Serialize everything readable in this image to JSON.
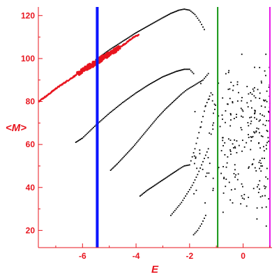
{
  "chart_data": {
    "type": "scatter",
    "xlabel": "E",
    "ylabel": "<M>",
    "xlim": [
      -7.65,
      1.08
    ],
    "ylim": [
      12,
      124
    ],
    "x_ticks": [
      "-6",
      "-4",
      "-2",
      "0"
    ],
    "y_ticks": [
      "20",
      "40",
      "60",
      "80",
      "100",
      "120"
    ],
    "colors": {
      "axes": "#e8141e",
      "red_series": "#e8141e",
      "black_series": "#000000",
      "blue_line": "#0a14ff",
      "green_line": "#149614",
      "magenta_line": "#e614e6"
    },
    "vertical_lines": [
      {
        "x": -5.45,
        "color": "#0a14ff"
      },
      {
        "x": -0.95,
        "color": "#149614"
      },
      {
        "x": 1.0,
        "color": "#e614e6"
      }
    ],
    "series": [
      {
        "color": "#e8141e",
        "description_visible": "",
        "branches": [
          {
            "x": [
              -7.65,
              -7.3,
              -7.0,
              -6.7,
              -6.4,
              -6.1,
              -5.8,
              -5.5,
              -5.3,
              -5.0,
              -4.7,
              -4.4,
              -4.2,
              -4.0,
              -3.9
            ],
            "y": [
              80,
              83,
              86,
              88.5,
              91,
              93.5,
              96,
              98,
              100,
              102,
              104.5,
              107,
              109,
              110.5,
              111
            ]
          }
        ]
      },
      {
        "color": "#000000",
        "branches": [
          {
            "x": [
              -5.5,
              -5.0,
              -4.5,
              -4.0,
              -3.5,
              -3.0,
              -2.7,
              -2.4,
              -2.2,
              -2.0,
              -1.8,
              -1.6,
              -1.45
            ],
            "y": [
              99.5,
              104,
              108,
              112,
              115.5,
              119,
              121,
              122.5,
              123,
              122.5,
              120.5,
              117,
              113.5
            ]
          },
          {
            "x": [
              -6.25,
              -6.0,
              -5.5,
              -5.0,
              -4.5,
              -4.0,
              -3.5,
              -3.0,
              -2.5,
              -2.2,
              -2.0,
              -1.85
            ],
            "y": [
              61,
              63,
              69,
              74.5,
              79.5,
              84,
              88,
              91.5,
              94,
              95,
              95,
              93
            ]
          },
          {
            "x": [
              -4.95,
              -4.7,
              -4.4,
              -4.1,
              -3.8,
              -3.5,
              -3.2,
              -2.9,
              -2.6,
              -2.3,
              -2.1,
              -1.9,
              -1.7,
              -1.5,
              -1.3
            ],
            "y": [
              48,
              51,
              55,
              59,
              63.5,
              68,
              72.5,
              76.5,
              80,
              83.5,
              85.5,
              87,
              88.5,
              90,
              93
            ]
          },
          {
            "x": [
              -3.85,
              -3.6,
              -3.3,
              -3.0,
              -2.7,
              -2.4,
              -2.2,
              -2.0,
              -1.8,
              -1.6,
              -1.4,
              -1.2
            ],
            "y": [
              36,
              38.5,
              41,
              43.5,
              46,
              48.5,
              50,
              50.5,
              58,
              68,
              78,
              84
            ]
          },
          {
            "x": [
              -2.7,
              -2.5,
              -2.3,
              -2.1,
              -1.9,
              -1.7,
              -1.5,
              -1.3
            ],
            "y": [
              27,
              30,
              33,
              37,
              41,
              46,
              52,
              58
            ]
          },
          {
            "x": [
              -1.85,
              -1.7,
              -1.55,
              -1.4
            ],
            "y": [
              18,
              20,
              23,
              27
            ]
          }
        ],
        "scattered_region": {
          "x_range": [
            -1.95,
            1.0
          ],
          "y_range": [
            14,
            102
          ]
        }
      }
    ]
  }
}
